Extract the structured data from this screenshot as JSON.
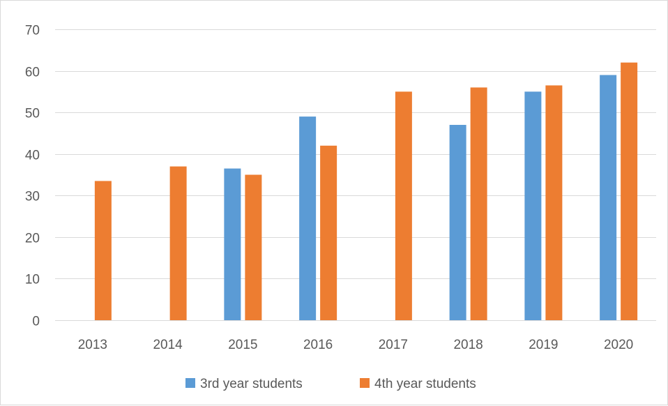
{
  "chart_data": {
    "type": "bar",
    "categories": [
      "2013",
      "2014",
      "2015",
      "2016",
      "2017",
      "2018",
      "2019",
      "2020"
    ],
    "series": [
      {
        "name": "3rd year students",
        "color": "#5b9bd5",
        "values": [
          null,
          null,
          36.5,
          49,
          null,
          47,
          55,
          59
        ]
      },
      {
        "name": "4th year students",
        "color": "#ed7d31",
        "values": [
          33.5,
          37,
          35,
          42,
          55,
          56,
          56.5,
          62
        ]
      }
    ],
    "ylim": [
      0,
      70
    ],
    "yticks": [
      0,
      10,
      20,
      30,
      40,
      50,
      60,
      70
    ],
    "grid": true,
    "legend_position": "bottom",
    "gridline_color": "#d9d9d9",
    "text_color": "#595959"
  }
}
